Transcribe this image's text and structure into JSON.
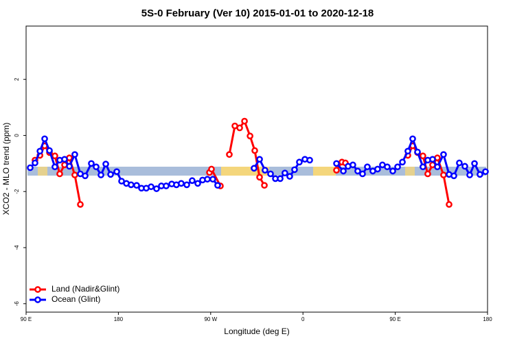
{
  "chart_data": {
    "type": "line",
    "title": "5S-0 February (Ver 10)   2015-01-01 to 2020-12-18",
    "x_label": "Longitude (deg E)",
    "y_label": "XCO2 - MLO trend (ppm)",
    "xlim": [
      90,
      540
    ],
    "xticks": [
      {
        "value": 90,
        "label": "90 E"
      },
      {
        "value": 180,
        "label": "180"
      },
      {
        "value": 270,
        "label": "90 W"
      },
      {
        "value": 360,
        "label": "0"
      },
      {
        "value": 450,
        "label": "90 E"
      },
      {
        "value": 540,
        "label": "180"
      }
    ],
    "ylim": [
      -6.3,
      3.9
    ],
    "yticks": [
      -6,
      -4,
      -2,
      0,
      2
    ],
    "legend": "bottomleft",
    "series": [
      {
        "name": "Land (Nadir&Glint)",
        "color": "#ff0000",
        "x": [
          98.7,
          103.5,
          108.1,
          112.8,
          118.1,
          122.8,
          127.5,
          132.2,
          137.5,
          142.9,
          200,
          268.8,
          270.8,
          279.5,
          285,
          288.2,
          293.6,
          298.3,
          303.0,
          308.4,
          313.0,
          317.7,
          322.4,
          350,
          392.7,
          398.0,
          401.4,
          430,
          462.3,
          467.0,
          471.7,
          477.0,
          481.7,
          486.4,
          491.1,
          497.1,
          502.5
        ],
        "values": [
          -0.88,
          -0.71,
          -0.37,
          -0.61,
          -0.73,
          -1.37,
          -1.05,
          -0.8,
          -1.41,
          -2.46,
          null,
          -1.32,
          -1.2,
          -1.8,
          null,
          -0.68,
          0.34,
          0.27,
          0.51,
          -0.02,
          -0.54,
          -1.49,
          -1.78,
          null,
          -1.24,
          -0.95,
          -0.98,
          null,
          -0.71,
          -0.37,
          -0.61,
          -0.73,
          -1.37,
          -1.05,
          -0.8,
          -1.41,
          -2.46
        ]
      },
      {
        "name": "Ocean (Glint)",
        "color": "#0000ff",
        "x": [
          94.0,
          98.7,
          103.5,
          108.1,
          112.8,
          118.1,
          122.8,
          127.5,
          132.2,
          137.5,
          142.9,
          147.6,
          153.6,
          158.3,
          163.0,
          167.7,
          172.4,
          178.4,
          183.1,
          187.8,
          192.4,
          197.8,
          202.5,
          207.2,
          211.9,
          217.2,
          221.9,
          226.6,
          232.0,
          236.6,
          241.3,
          246.7,
          252.0,
          257.4,
          262.1,
          266.8,
          272.1,
          276.8,
          295,
          312.3,
          317.7,
          323.0,
          328.4,
          333.1,
          337.8,
          342.4,
          347.1,
          351.8,
          356.5,
          361.9,
          366.6,
          380,
          392.7,
          399.4,
          404.0,
          408.7,
          413.4,
          418.1,
          422.8,
          428.1,
          432.8,
          437.5,
          442.2,
          447.6,
          452.3,
          457.0,
          462.3,
          467.0,
          471.7,
          477.0,
          481.7,
          486.4,
          491.1,
          497.1,
          502.5,
          507.2,
          512.5,
          517.9,
          522.6,
          527.3,
          532.6,
          538.0
        ],
        "values": [
          -1.15,
          -0.98,
          -0.56,
          -0.12,
          -0.54,
          -1.12,
          -0.88,
          -0.85,
          -1.1,
          -0.68,
          -1.37,
          -1.44,
          -1.0,
          -1.12,
          -1.41,
          -1.02,
          -1.39,
          -1.29,
          -1.63,
          -1.71,
          -1.76,
          -1.78,
          -1.88,
          -1.88,
          -1.83,
          -1.9,
          -1.8,
          -1.8,
          -1.73,
          -1.76,
          -1.71,
          -1.76,
          -1.61,
          -1.71,
          -1.59,
          -1.56,
          -1.56,
          -1.78,
          null,
          -1.17,
          -0.85,
          -1.24,
          -1.37,
          -1.54,
          -1.54,
          -1.34,
          -1.46,
          -1.22,
          -0.95,
          -0.85,
          -0.88,
          null,
          -1.0,
          -1.27,
          -1.1,
          -1.05,
          -1.27,
          -1.37,
          -1.12,
          -1.27,
          -1.2,
          -1.05,
          -1.12,
          -1.27,
          -1.12,
          -0.95,
          -0.56,
          -0.12,
          -0.59,
          -1.12,
          -0.88,
          -0.85,
          -1.12,
          -0.68,
          -1.39,
          -1.44,
          -0.98,
          -1.1,
          -1.41,
          -1.0,
          -1.39,
          -1.29
        ]
      }
    ]
  }
}
